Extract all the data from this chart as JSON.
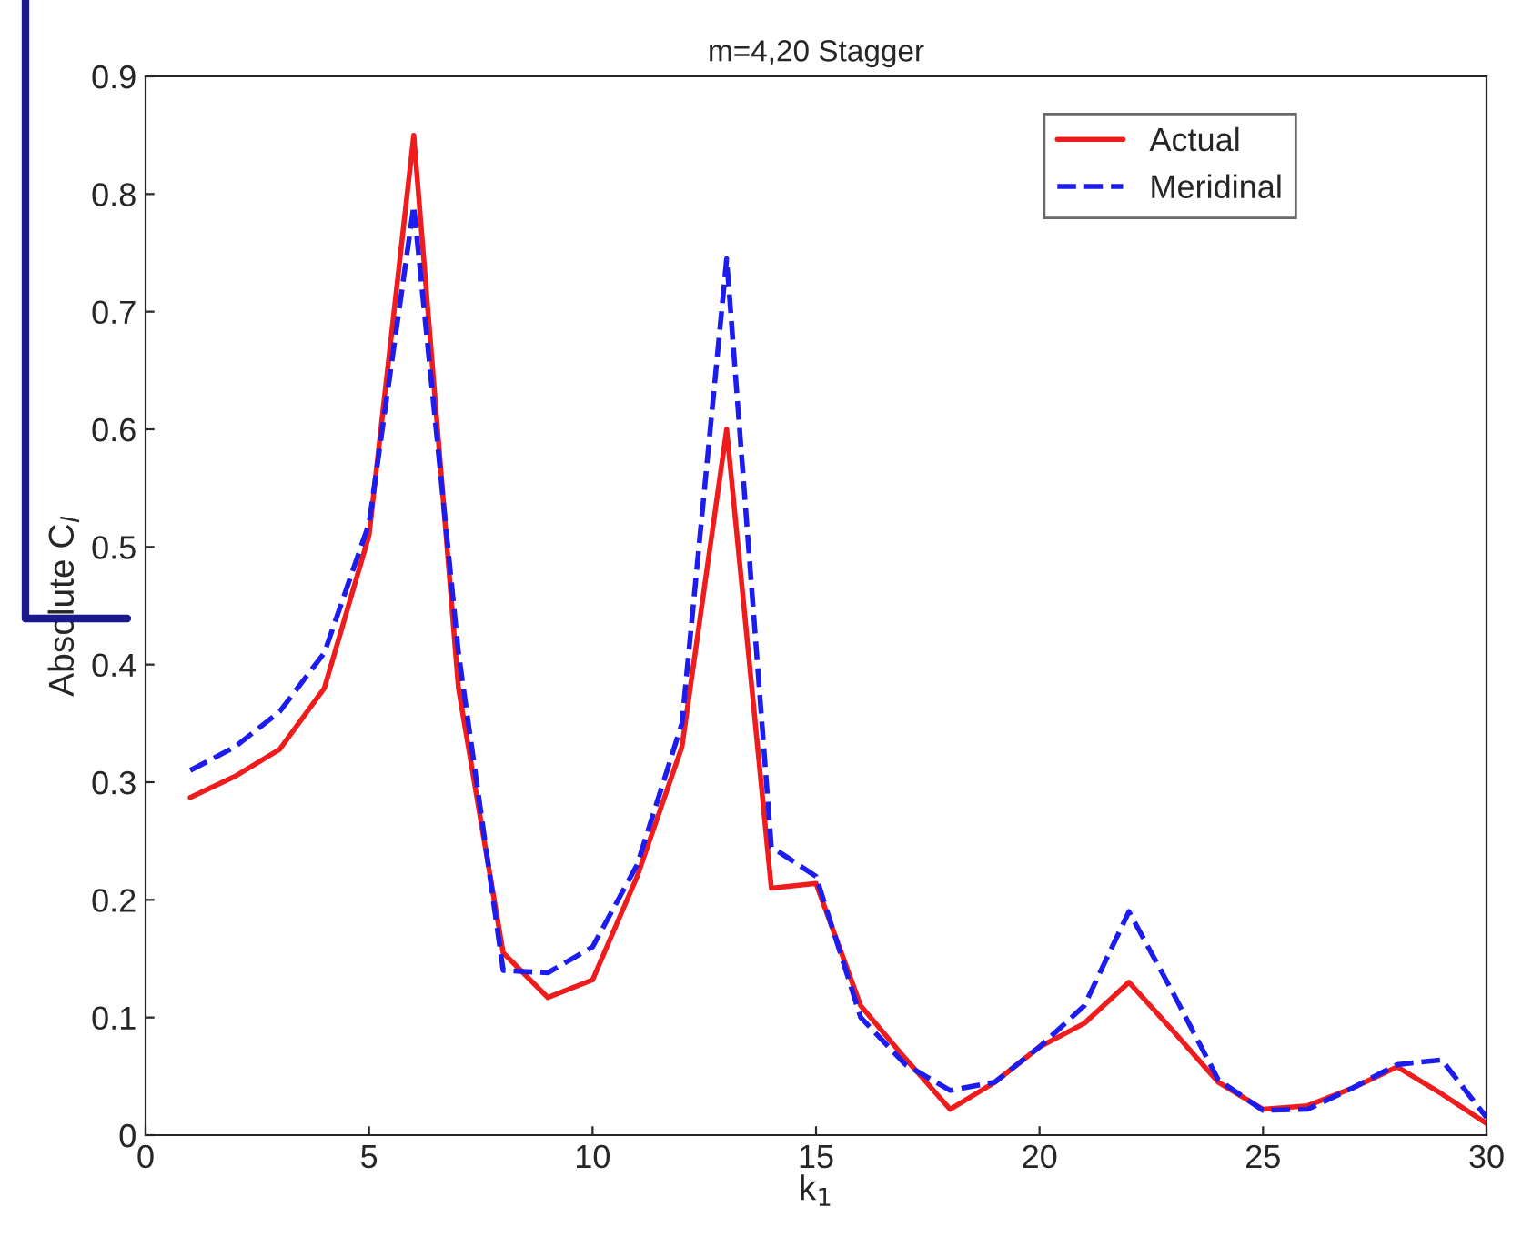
{
  "chart_data": {
    "type": "line",
    "title": "m=4,20 Stagger",
    "xlabel": "k$_{1}$",
    "ylabel": "Absolute C$_{l}$",
    "x": [
      1,
      2,
      3,
      4,
      5,
      6,
      7,
      8,
      9,
      10,
      11,
      12,
      13,
      14,
      15,
      16,
      17,
      18,
      19,
      20,
      21,
      22,
      23,
      24,
      25,
      26,
      27,
      28,
      29,
      30
    ],
    "series": [
      {
        "name": "Actual",
        "color": "#ee1c1c",
        "line_style": "solid",
        "values": [
          0.287,
          0.305,
          0.328,
          0.38,
          0.51,
          0.85,
          0.38,
          0.155,
          0.117,
          0.132,
          0.22,
          0.33,
          0.6,
          0.21,
          0.214,
          0.11,
          0.065,
          0.022,
          0.045,
          0.075,
          0.095,
          0.13,
          0.088,
          0.045,
          0.022,
          0.025,
          0.04,
          0.058,
          0.035,
          0.01
        ]
      },
      {
        "name": "Meridinal",
        "color": "#1c1cee",
        "line_style": "dashed",
        "values": [
          0.31,
          0.33,
          0.36,
          0.41,
          0.52,
          0.79,
          0.41,
          0.14,
          0.138,
          0.16,
          0.23,
          0.35,
          0.745,
          0.245,
          0.22,
          0.1,
          0.06,
          0.038,
          0.045,
          0.075,
          0.11,
          0.19,
          0.12,
          0.047,
          0.021,
          0.022,
          0.04,
          0.06,
          0.064,
          0.015
        ]
      }
    ],
    "xlim": [
      0,
      30
    ],
    "xticks": [
      0,
      5,
      10,
      15,
      20,
      25,
      30
    ],
    "ylim": [
      0,
      0.9
    ],
    "yticks": [
      0,
      0.1,
      0.2,
      0.3,
      0.4,
      0.5,
      0.6,
      0.7,
      0.8,
      0.9
    ],
    "grid": false,
    "legend": "top right"
  }
}
